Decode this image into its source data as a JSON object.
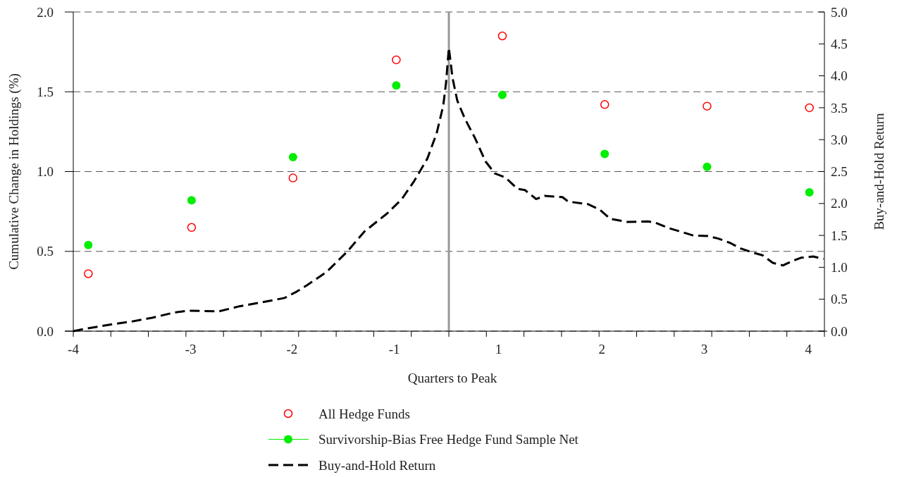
{
  "chart_data": {
    "type": "scatter",
    "xlabel": "Quarters to Peak",
    "ylabel": "Cumulative Change in Holdings (%)",
    "y2label": "Buy-and-Hold Return",
    "xlim": [
      -4,
      4
    ],
    "xticks": [
      {
        "value": -4,
        "label": null
      },
      {
        "value": -3.6,
        "label": null
      },
      {
        "value": -3.2,
        "label": null
      },
      {
        "value": -2.8,
        "label": null
      },
      {
        "value": -2.4,
        "label": null
      },
      {
        "value": -2,
        "label": null
      },
      {
        "value": -1.6,
        "label": null
      },
      {
        "value": -1.2,
        "label": null
      },
      {
        "value": -0.8,
        "label": null
      },
      {
        "value": -0.4,
        "label": null
      },
      {
        "value": 0,
        "label": null
      },
      {
        "value": 0.4,
        "label": null
      },
      {
        "value": 0.8,
        "label": null
      },
      {
        "value": 1.2,
        "label": null
      },
      {
        "value": 1.6,
        "label": null
      },
      {
        "value": 2,
        "label": null
      },
      {
        "value": 2.4,
        "label": null
      },
      {
        "value": 2.8,
        "label": null
      },
      {
        "value": 3.2,
        "label": null
      },
      {
        "value": 3.6,
        "label": null
      },
      {
        "value": 4,
        "label": null
      },
      {
        "value": -4,
        "label": "-4"
      },
      {
        "value": -2.75,
        "label": "-3"
      },
      {
        "value": -1.67,
        "label": "-2"
      },
      {
        "value": -0.58,
        "label": "-1"
      },
      {
        "value": 0.53,
        "label": "1"
      },
      {
        "value": 1.63,
        "label": "2"
      },
      {
        "value": 2.72,
        "label": "3"
      },
      {
        "value": 3.83,
        "label": "4"
      }
    ],
    "ylim": [
      0,
      2
    ],
    "yticks": [
      {
        "value": 0,
        "label": "0.0"
      },
      {
        "value": 0.5,
        "label": "0.5"
      },
      {
        "value": 1,
        "label": "1.0"
      },
      {
        "value": 1.5,
        "label": "1.5"
      },
      {
        "value": 2,
        "label": "2.0"
      }
    ],
    "y2lim": [
      0,
      5
    ],
    "y2ticks": [
      {
        "value": 0,
        "label": "0.0"
      },
      0.5,
      {
        "value": 1,
        "label": "1.0"
      },
      1.5,
      {
        "value": 2,
        "label": "2.0"
      },
      2.5,
      {
        "value": 3,
        "label": "3.0"
      },
      3.5,
      {
        "value": 4,
        "label": "4.0"
      },
      4.5,
      {
        "value": 5,
        "label": "5.0"
      }
    ],
    "grid": "y",
    "legend": "bottom",
    "marker": "circle",
    "ref_lines": [
      {
        "axis": "x",
        "value": 0,
        "color": "#999999"
      }
    ],
    "series": [
      {
        "name": "All Hedge Funds",
        "color": "#ff0000",
        "x": [
          -3.84,
          -2.74,
          -1.66,
          -0.56,
          0.57,
          1.66,
          2.75,
          3.84
        ],
        "values": [
          0.36,
          0.65,
          0.96,
          1.7,
          1.85,
          1.42,
          1.41,
          1.4
        ]
      },
      {
        "name": "Survivorship-Bias Free Hedge Fund Sample Net",
        "color": "#00ee00",
        "x": [
          -3.84,
          -2.74,
          -1.66,
          -0.56,
          0.57,
          1.66,
          2.75,
          3.84
        ],
        "values": [
          0.54,
          0.82,
          1.09,
          1.54,
          1.48,
          1.11,
          1.03,
          0.87
        ]
      },
      {
        "name": "Buy-and-Hold Return",
        "type": "line",
        "axis": "y2",
        "color": "#000000",
        "line_style": "dashed",
        "marker": "none",
        "x": [
          -4,
          -3.86,
          -3.62,
          -3.38,
          -3.16,
          -2.93,
          -2.79,
          -2.45,
          -2.23,
          -1.96,
          -1.75,
          -1.62,
          -1.51,
          -1.3,
          -1.08,
          -0.9,
          -0.66,
          -0.5,
          -0.37,
          -0.23,
          -0.13,
          -0.06,
          -0.03,
          0,
          0.04,
          0.09,
          0.17,
          0.28,
          0.39,
          0.49,
          0.6,
          0.73,
          0.81,
          0.93,
          1.02,
          1.21,
          1.27,
          1.48,
          1.61,
          1.72,
          1.9,
          2.12,
          2.2,
          2.33,
          2.6,
          2.76,
          2.87,
          3.0,
          3.1,
          3.24,
          3.34,
          3.45,
          3.56,
          3.66,
          3.75,
          3.88,
          3.99
        ],
        "values": [
          0,
          0.04,
          0.1,
          0.15,
          0.21,
          0.29,
          0.32,
          0.31,
          0.39,
          0.46,
          0.52,
          0.62,
          0.72,
          0.93,
          1.25,
          1.56,
          1.84,
          2.07,
          2.35,
          2.7,
          3.1,
          3.53,
          3.89,
          4.44,
          3.96,
          3.61,
          3.33,
          3.02,
          2.66,
          2.47,
          2.41,
          2.23,
          2.21,
          2.07,
          2.12,
          2.1,
          2.03,
          1.99,
          1.9,
          1.76,
          1.71,
          1.72,
          1.7,
          1.62,
          1.5,
          1.49,
          1.45,
          1.38,
          1.3,
          1.23,
          1.19,
          1.07,
          1.03,
          1.1,
          1.15,
          1.17,
          1.13
        ]
      }
    ]
  }
}
